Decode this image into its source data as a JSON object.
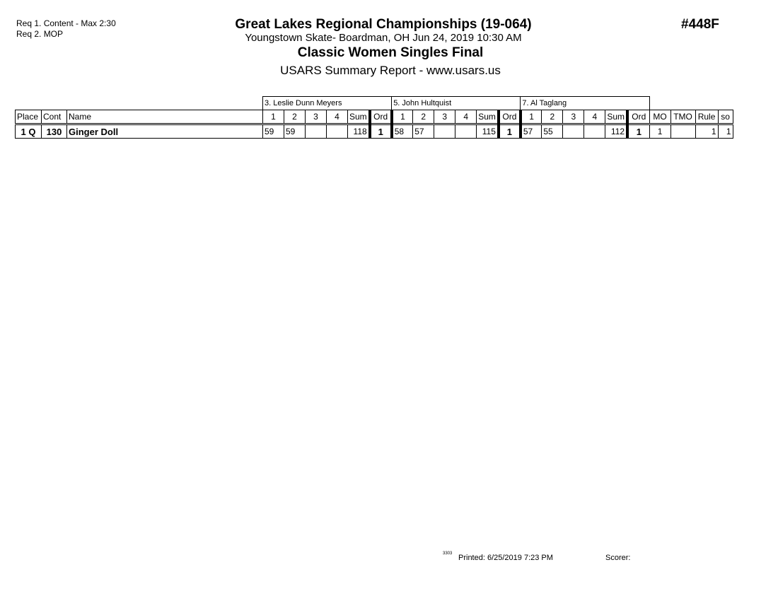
{
  "requirements": [
    "Req 1.  Content - Max 2:30",
    "Req 2.  MOP"
  ],
  "header": {
    "title": "Great Lakes Regional Championships (19-064)",
    "subtitle": "Youngstown Skate- Boardman, OH  Jun 24, 2019  10:30 AM",
    "event": "Classic Women Singles Final",
    "report": "USARS Summary Report - www.usars.us",
    "event_number": "#448F"
  },
  "judges": [
    "3.  Leslie Dunn Meyers",
    "5.  John  Hultquist",
    "7.  Al  Taglang"
  ],
  "columns": {
    "place": "Place",
    "cont": "Cont",
    "name": "Name",
    "s1": "1",
    "s2": "2",
    "s3": "3",
    "s4": "4",
    "sum": "Sum",
    "ord": "Ord",
    "mo": "MO",
    "tmo": "TMO",
    "rule": "Rule",
    "so": "so"
  },
  "rows": [
    {
      "place": "1 Q",
      "cont": "130",
      "name": "Ginger Doll",
      "judges": [
        {
          "s1": "59",
          "s2": "59",
          "s3": "",
          "s4": "",
          "sum": "118",
          "ord": "1"
        },
        {
          "s1": "58",
          "s2": "57",
          "s3": "",
          "s4": "",
          "sum": "115",
          "ord": "1"
        },
        {
          "s1": "57",
          "s2": "55",
          "s3": "",
          "s4": "",
          "sum": "112",
          "ord": "1"
        }
      ],
      "mo": "1",
      "tmo": "",
      "rule": "1",
      "so": "1"
    }
  ],
  "footer": {
    "code": "3303",
    "printed": "Printed:  6/25/2019  7:23 PM",
    "scorer": "Scorer:"
  }
}
